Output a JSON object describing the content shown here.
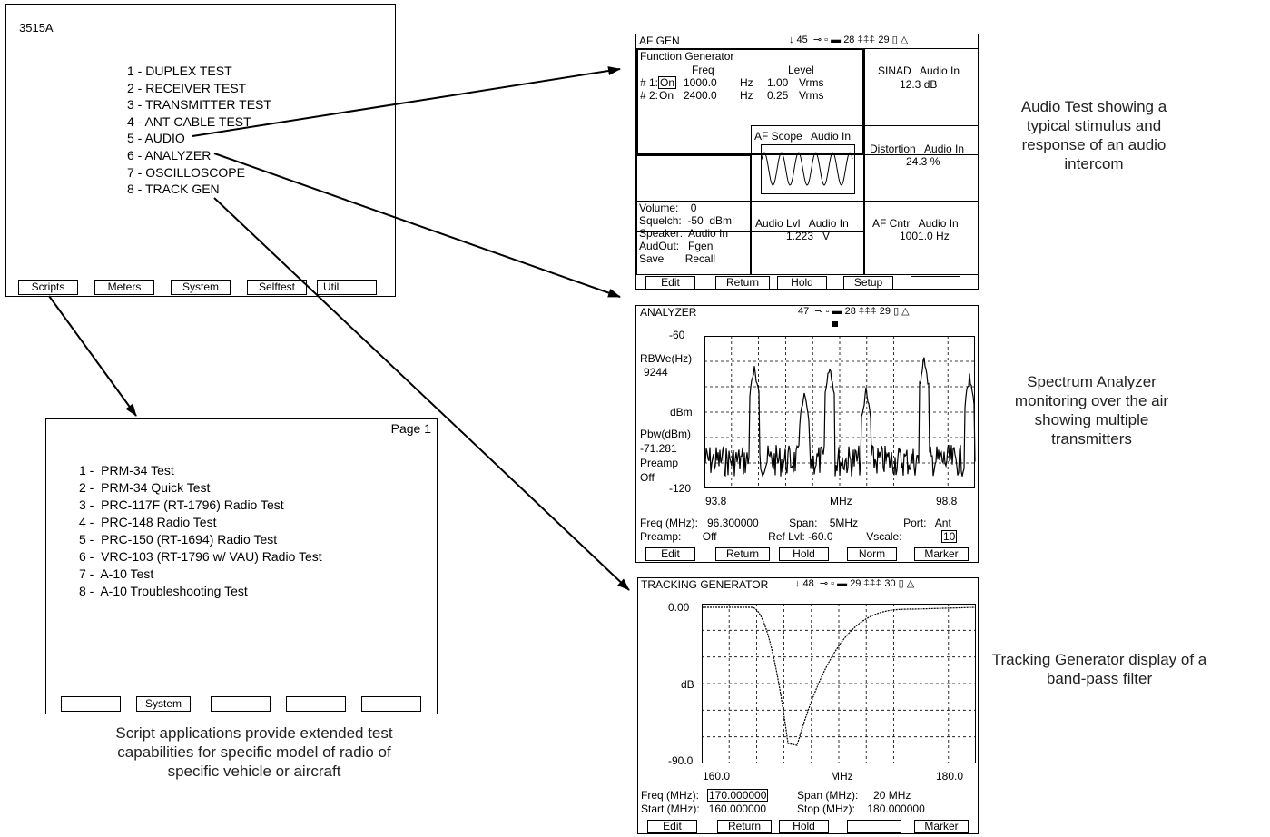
{
  "main_menu": {
    "model": "3515A",
    "items": [
      "1 - DUPLEX TEST",
      "2 - RECEIVER TEST",
      "3 - TRANSMITTER TEST",
      "4 - ANT-CABLE TEST",
      "5 - AUDIO",
      "6 - ANALYZER",
      "7 - OSCILLOSCOPE",
      "8 - TRACK GEN"
    ],
    "softkeys": [
      "Scripts",
      "Meters",
      "System",
      "Selftest",
      "Util"
    ]
  },
  "scripts": {
    "page": "Page 1",
    "items": [
      "1 -  PRM-34 Test",
      "2 -  PRM-34 Quick Test",
      "3 -  PRC-117F (RT-1796) Radio Test",
      "4 -  PRC-148 Radio Test",
      "5 -  PRC-150 (RT-1694) Radio Test",
      "6 -  VRC-103 (RT-1796 w/ VAU) Radio Test",
      "7 -  A-10 Test",
      "8 -  A-10 Troubleshooting Test"
    ],
    "softkeys": [
      "",
      "System",
      "",
      "",
      ""
    ],
    "caption": "Script applications provide extended test capabilities for specific model of radio of specific vehicle or aircraft"
  },
  "audio": {
    "title": "AF GEN",
    "status": "↓ 45  ⊸ ▫ ▬ 28 ⍏⍏⍏ 29 ▯ △",
    "fg_title": "Function Generator",
    "col_freq": "Freq",
    "col_level": "Level",
    "rows": [
      {
        "id": "# 1:",
        "state": "On",
        "freq": "1000.0",
        "fu": "Hz",
        "level": "1.00",
        "lu": "Vrms"
      },
      {
        "id": "# 2:",
        "state": "On",
        "freq": "2400.0",
        "fu": "Hz",
        "level": "0.25",
        "lu": "Vrms"
      }
    ],
    "sinad_label": "SINAD   Audio In",
    "sinad_value": "12.3 dB",
    "scope_label": "AF Scope   Audio In",
    "dist_label": "Distortion   Audio In",
    "dist_value": "24.3 %",
    "settings": [
      "Volume:    0",
      "Squelch:  -50  dBm",
      "Speaker:  Audio In",
      "AudOut:   Fgen",
      "Save       Recall"
    ],
    "lvl_label": "Audio Lvl   Audio In",
    "lvl_value": "1.223   V",
    "cntr_label": "AF Cntr   Audio In",
    "cntr_value": "1001.0 Hz",
    "softkeys": [
      "Edit",
      "Return",
      "Hold",
      "Setup",
      ""
    ],
    "caption": "Audio Test showing a typical stimulus and response of an audio intercom"
  },
  "analyzer": {
    "title": "ANALYZER",
    "status": "47  ⊸ ▫ ▬ 28 ⍏⍏⍏ 29 ▯ △",
    "y_top": "-60",
    "rbw_label": "RBWe(Hz)",
    "rbw_value": "9244",
    "unit": "dBm",
    "pbw_label": "Pbw(dBm)",
    "pbw_value": "-71.281",
    "preamp_label": "Preamp",
    "preamp_value": "Off",
    "y_bottom": "-120",
    "x_left": "93.8",
    "x_unit": "MHz",
    "x_right": "98.8",
    "info_line1": "Freq (MHz):   96.300000          Span:    5MHz               Port:   Ant",
    "info_line2": "Preamp:       Off                 Ref Lvl: -60.0           Vscale:",
    "vscale": "10",
    "softkeys": [
      "Edit",
      "Return",
      "Hold",
      "Norm",
      "Marker"
    ],
    "caption": "Spectrum Analyzer monitoring over the air showing multiple transmitters"
  },
  "tracking": {
    "title": "TRACKING GENERATOR",
    "status": "↓ 48  ⊸ ▫ ▬ 29 ⍏⍏⍏ 30 ▯ △",
    "y_top": "0.00",
    "unit": "dB",
    "y_bottom": "-90.0",
    "x_left": "160.0",
    "x_unit": "MHz",
    "x_right": "180.0",
    "freq_label": "Freq (MHz):",
    "freq_value": "170.000000",
    "span_text": "Span (MHz):     20 MHz",
    "start_text": "Start (MHz):   160.000000",
    "stop_text": "Stop (MHz):    180.000000",
    "softkeys": [
      "Edit",
      "Return",
      "Hold",
      "",
      "Marker"
    ],
    "caption": "Tracking Generator display of a band-pass filter"
  }
}
